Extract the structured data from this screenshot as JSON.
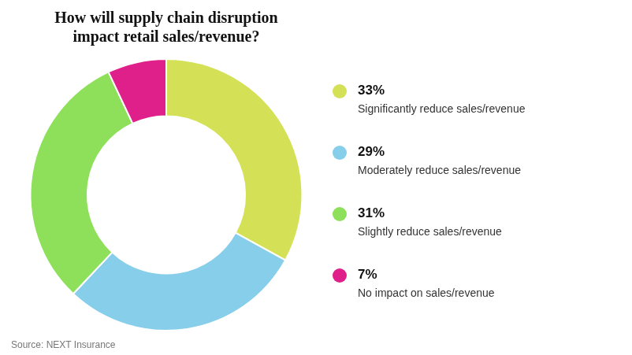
{
  "chart_data": {
    "type": "donut",
    "title": "How will supply chain disruption\nimpact retail sales/revenue?",
    "categories": [
      "Significantly reduce sales/revenue",
      "Moderately reduce sales/revenue",
      "Slightly reduce sales/revenue",
      "No impact on sales/revenue"
    ],
    "values": [
      33,
      29,
      31,
      7
    ],
    "value_labels": [
      "33%",
      "29%",
      "31%",
      "7%"
    ],
    "colors": [
      "#d4e157",
      "#87ceeb",
      "#8ee05a",
      "#e0208a"
    ],
    "legend": "right",
    "annotations": [
      "Source: NEXT Insurance"
    ]
  }
}
